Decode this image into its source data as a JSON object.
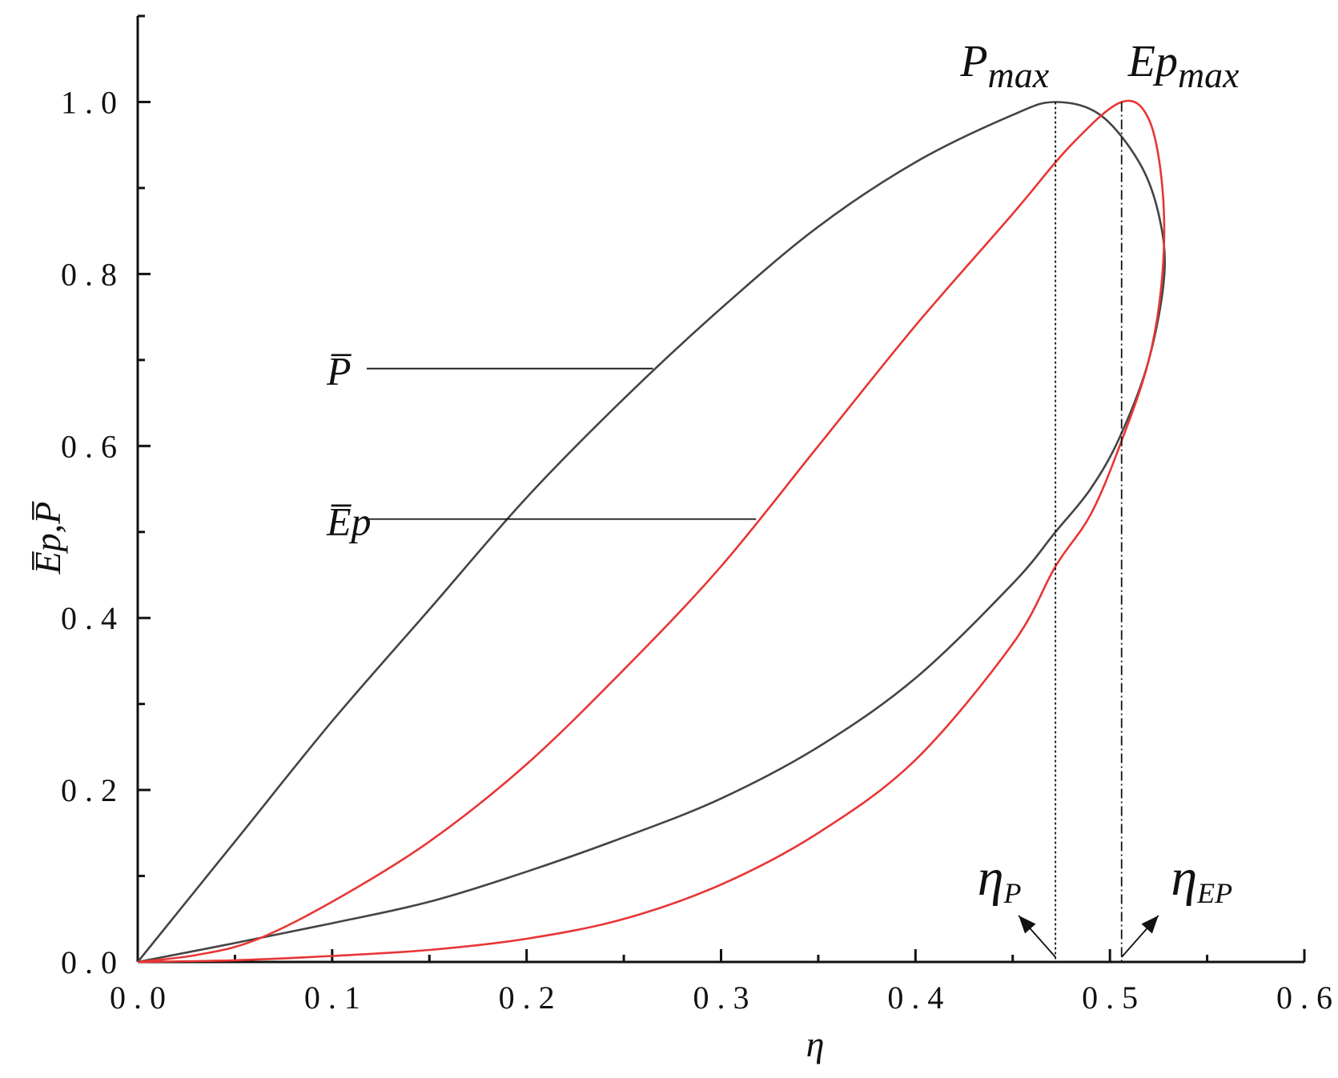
{
  "chart_data": {
    "type": "line",
    "xlabel": "η",
    "ylabel": "E̅p,P̅",
    "xlim": [
      0,
      0.6
    ],
    "ylim": [
      0,
      1.1
    ],
    "x_ticks": [
      "0.0",
      "0.1",
      "0.2",
      "0.3",
      "0.4",
      "0.5",
      "0.6"
    ],
    "y_ticks": [
      "0.0",
      "0.2",
      "0.4",
      "0.6",
      "0.8",
      "1.0"
    ],
    "grid": false,
    "series": [
      {
        "name": "P̅",
        "color": "#444444",
        "points": [
          [
            0,
            0
          ],
          [
            0.05,
            0.14
          ],
          [
            0.1,
            0.28
          ],
          [
            0.15,
            0.41
          ],
          [
            0.2,
            0.54
          ],
          [
            0.25,
            0.655
          ],
          [
            0.3,
            0.76
          ],
          [
            0.35,
            0.855
          ],
          [
            0.4,
            0.93
          ],
          [
            0.45,
            0.985
          ],
          [
            0.472,
            1.0
          ],
          [
            0.495,
            0.985
          ],
          [
            0.515,
            0.93
          ],
          [
            0.525,
            0.87
          ],
          [
            0.528,
            0.8
          ],
          [
            0.52,
            0.7
          ],
          [
            0.505,
            0.61
          ],
          [
            0.49,
            0.55
          ],
          [
            0.472,
            0.5
          ],
          [
            0.45,
            0.44
          ],
          [
            0.4,
            0.33
          ],
          [
            0.35,
            0.25
          ],
          [
            0.3,
            0.19
          ],
          [
            0.25,
            0.145
          ],
          [
            0.2,
            0.105
          ],
          [
            0.15,
            0.07
          ],
          [
            0.1,
            0.045
          ],
          [
            0.05,
            0.022
          ],
          [
            0,
            0
          ]
        ]
      },
      {
        "name": "E̅p",
        "color": "#e83535",
        "points": [
          [
            0,
            0
          ],
          [
            0.03,
            0.008
          ],
          [
            0.06,
            0.025
          ],
          [
            0.1,
            0.07
          ],
          [
            0.15,
            0.14
          ],
          [
            0.2,
            0.23
          ],
          [
            0.25,
            0.34
          ],
          [
            0.3,
            0.46
          ],
          [
            0.35,
            0.6
          ],
          [
            0.4,
            0.74
          ],
          [
            0.45,
            0.87
          ],
          [
            0.48,
            0.95
          ],
          [
            0.506,
            1.0
          ],
          [
            0.52,
            0.98
          ],
          [
            0.527,
            0.9
          ],
          [
            0.527,
            0.8
          ],
          [
            0.52,
            0.7
          ],
          [
            0.505,
            0.6
          ],
          [
            0.49,
            0.52
          ],
          [
            0.472,
            0.46
          ],
          [
            0.45,
            0.37
          ],
          [
            0.4,
            0.235
          ],
          [
            0.35,
            0.15
          ],
          [
            0.3,
            0.09
          ],
          [
            0.25,
            0.05
          ],
          [
            0.2,
            0.027
          ],
          [
            0.15,
            0.014
          ],
          [
            0.1,
            0.007
          ],
          [
            0.05,
            0.002
          ],
          [
            0,
            0
          ]
        ]
      }
    ],
    "vlines": [
      {
        "x": 0.472,
        "style": "dotted",
        "top_label": "P",
        "top_label_sub": "max",
        "bottom_label": "η",
        "bottom_label_sub": "P"
      },
      {
        "x": 0.506,
        "style": "dashdot",
        "top_label": "Ep",
        "top_label_sub": "max",
        "bottom_label": "η",
        "bottom_label_sub": "EP"
      }
    ],
    "curve_labels": [
      {
        "text": "P̅",
        "y": 0.69,
        "x_end": 0.265
      },
      {
        "text": "E̅p",
        "y": 0.515,
        "x_end": 0.318
      }
    ]
  }
}
